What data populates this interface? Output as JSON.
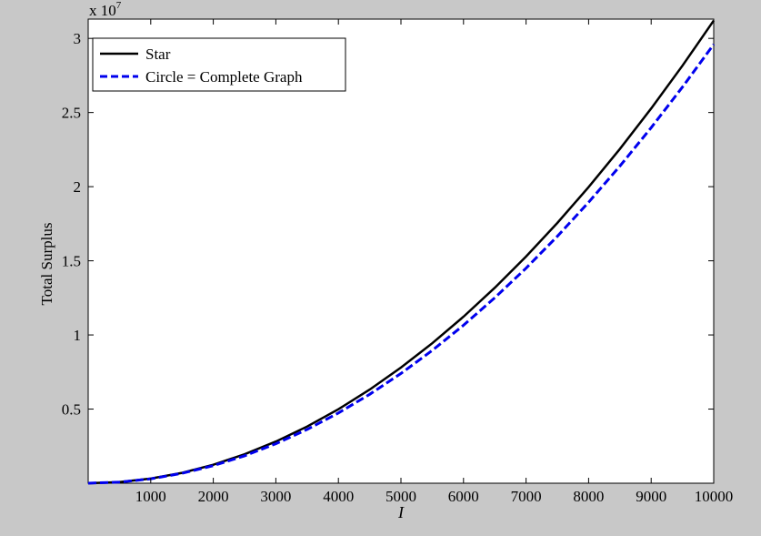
{
  "chart_data": {
    "type": "line",
    "title": "",
    "xlabel": "I",
    "ylabel": "Total Surplus",
    "y_exponent_label": "x 10",
    "y_exponent_power": "7",
    "xlim": [
      0,
      10000
    ],
    "ylim": [
      0,
      31300000
    ],
    "x_ticks": [
      1000,
      2000,
      3000,
      4000,
      5000,
      6000,
      7000,
      8000,
      9000,
      10000
    ],
    "x_tick_labels": [
      "1000",
      "2000",
      "3000",
      "4000",
      "5000",
      "6000",
      "7000",
      "8000",
      "9000",
      "10000"
    ],
    "y_ticks": [
      5000000,
      10000000,
      15000000,
      20000000,
      25000000,
      30000000
    ],
    "y_tick_labels": [
      "0.5",
      "1",
      "1.5",
      "2",
      "2.5",
      "3"
    ],
    "grid": false,
    "legend_position": "top-left",
    "series": [
      {
        "name": "Star",
        "color": "#000000",
        "style": "solid",
        "x": [
          0,
          500,
          1000,
          1500,
          2000,
          2500,
          3000,
          3500,
          4000,
          4500,
          5000,
          5500,
          6000,
          6500,
          7000,
          7500,
          8000,
          8500,
          9000,
          9500,
          10000
        ],
        "y": [
          0,
          78000,
          312000,
          702000,
          1248000,
          1950000,
          2808000,
          3822000,
          4992000,
          6318000,
          7800000,
          9438000,
          11232000,
          13182000,
          15288000,
          17550000,
          19968000,
          22542000,
          25272000,
          28158000,
          31200000
        ]
      },
      {
        "name": "Circle = Complete Graph",
        "color": "#0000ee",
        "style": "dashed",
        "x": [
          0,
          500,
          1000,
          1500,
          2000,
          2500,
          3000,
          3500,
          4000,
          4500,
          5000,
          5500,
          6000,
          6500,
          7000,
          7500,
          8000,
          8500,
          9000,
          9500,
          10000
        ],
        "y": [
          0,
          74000,
          296000,
          666000,
          1184000,
          1850000,
          2664000,
          3626000,
          4736000,
          5994000,
          7400000,
          8954000,
          10656000,
          12506000,
          14504000,
          16650000,
          18944000,
          21386000,
          23976000,
          26714000,
          29600000
        ]
      }
    ]
  }
}
